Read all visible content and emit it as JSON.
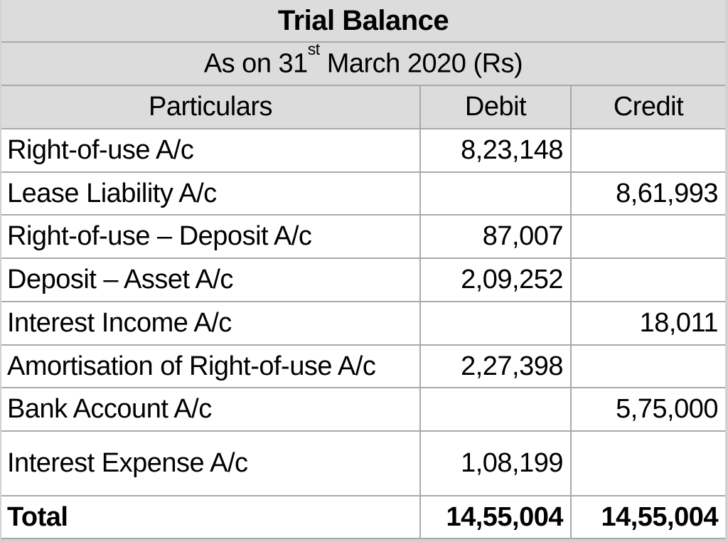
{
  "document": {
    "title": "Trial Balance",
    "subtitle": {
      "prefix": "As on 31",
      "superscript": "st",
      "suffix": " March 2020 (Rs)"
    },
    "table": {
      "columns": [
        "Particulars",
        "Debit",
        "Credit"
      ],
      "rows": [
        {
          "particulars": "Right-of-use A/c",
          "debit": "8,23,148",
          "credit": ""
        },
        {
          "particulars": "Lease Liability A/c",
          "debit": "",
          "credit": "8,61,993"
        },
        {
          "particulars": "Right-of-use – Deposit A/c",
          "debit": "87,007",
          "credit": ""
        },
        {
          "particulars": "Deposit – Asset A/c",
          "debit": "2,09,252",
          "credit": ""
        },
        {
          "particulars": "Interest Income A/c",
          "debit": "",
          "credit": "18,011"
        },
        {
          "particulars": "Amortisation of Right-of-use A/c",
          "debit": "2,27,398",
          "credit": ""
        },
        {
          "particulars": "Bank Account A/c",
          "debit": "",
          "credit": "5,75,000"
        },
        {
          "particulars": "Interest Expense A/c",
          "debit": "1,08,199",
          "credit": ""
        }
      ],
      "total": {
        "label": "Total",
        "debit": "14,55,004",
        "credit": "14,55,004"
      }
    },
    "colors": {
      "header_background": "#dcdcdc",
      "grid_line": "#a9a9a9",
      "frame_background": "#d2d2d2",
      "row_background": "#ffffff",
      "text": "#000000"
    }
  }
}
